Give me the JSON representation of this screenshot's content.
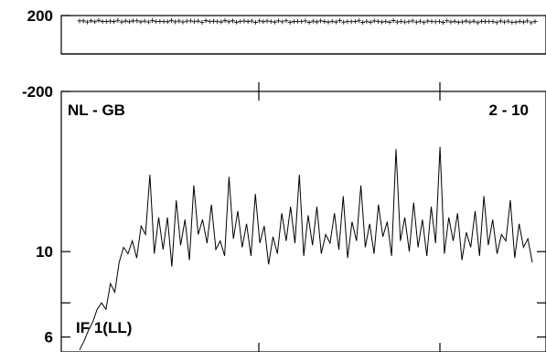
{
  "colors": {
    "line": "#000000",
    "frame": "#000000",
    "background": "#ffffff"
  },
  "chart_data": [
    {
      "type": "scatter",
      "panel": "phase",
      "y_ticks": [
        {
          "value": 200,
          "label": "200"
        },
        {
          "value": -200,
          "label": "-200"
        }
      ],
      "ylim": [
        -200,
        200
      ],
      "series": [
        {
          "marker": "plus",
          "y_mean": 170,
          "y_jitter": 3.5
        }
      ]
    },
    {
      "type": "line",
      "panel": "amplitude",
      "ylim": [
        5.3,
        17.5
      ],
      "y_ticks": [
        {
          "value": 10,
          "label": "10"
        },
        {
          "value": 6,
          "label": "6"
        }
      ],
      "x_ticks": [
        0.4,
        0.8
      ],
      "labels": {
        "top_left": "NL - GB",
        "top_right": "2 - 10",
        "bottom_left": "IF 1(LL)"
      },
      "x": [
        0.0,
        0.0097,
        0.0194,
        0.0291,
        0.0388,
        0.0485,
        0.0583,
        0.068,
        0.0777,
        0.0874,
        0.0971,
        0.1068,
        0.1165,
        0.1262,
        0.1359,
        0.1456,
        0.1553,
        0.165,
        0.1748,
        0.1845,
        0.1942,
        0.2039,
        0.2136,
        0.2233,
        0.233,
        0.2427,
        0.2524,
        0.2621,
        0.2718,
        0.2816,
        0.2913,
        0.301,
        0.3107,
        0.3204,
        0.3301,
        0.3398,
        0.3495,
        0.3592,
        0.3689,
        0.3786,
        0.3883,
        0.3981,
        0.4078,
        0.4175,
        0.4272,
        0.4369,
        0.4466,
        0.4563,
        0.466,
        0.4757,
        0.4854,
        0.4951,
        0.5049,
        0.5146,
        0.5243,
        0.534,
        0.5437,
        0.5534,
        0.5631,
        0.5728,
        0.5825,
        0.5922,
        0.6019,
        0.6117,
        0.6214,
        0.6311,
        0.6408,
        0.6505,
        0.6602,
        0.6699,
        0.6796,
        0.6893,
        0.699,
        0.7087,
        0.7184,
        0.7282,
        0.7379,
        0.7476,
        0.7573,
        0.767,
        0.7767,
        0.7864,
        0.7961,
        0.8058,
        0.8155,
        0.8252,
        0.835,
        0.8447,
        0.8544,
        0.8641,
        0.8738,
        0.8835,
        0.8932,
        0.9029,
        0.9126,
        0.9223,
        0.932,
        0.9417,
        0.9515,
        0.9612,
        0.9709,
        0.9806,
        0.9903,
        1.0
      ],
      "y": [
        5.4,
        5.8,
        6.3,
        6.7,
        7.3,
        7.6,
        7.3,
        8.5,
        8.1,
        9.5,
        10.2,
        9.9,
        10.5,
        9.7,
        11.2,
        10.8,
        13.6,
        9.9,
        11.6,
        10.1,
        11.6,
        9.3,
        12.4,
        10.3,
        11.5,
        9.6,
        13.1,
        10.8,
        11.5,
        10.4,
        12.2,
        10.1,
        10.5,
        9.8,
        13.5,
        10.6,
        11.9,
        10.2,
        11.3,
        9.8,
        12.7,
        10.4,
        11.2,
        9.4,
        10.7,
        9.9,
        11.8,
        10.5,
        12.1,
        10.4,
        13.6,
        9.8,
        11.7,
        10.3,
        12.1,
        9.9,
        10.8,
        10.4,
        11.8,
        10.1,
        12.6,
        9.7,
        11.4,
        10.5,
        13.1,
        10.2,
        11.3,
        9.9,
        12.2,
        10.7,
        11.4,
        9.8,
        14.8,
        10.5,
        11.6,
        10.0,
        12.3,
        10.2,
        11.5,
        9.8,
        12.1,
        10.4,
        14.9,
        9.9,
        11.6,
        10.5,
        11.8,
        9.6,
        10.9,
        10.2,
        11.9,
        9.8,
        12.6,
        10.3,
        11.5,
        9.9,
        10.8,
        10.5,
        12.4,
        9.7,
        11.3,
        10.2,
        10.6,
        9.5
      ]
    }
  ]
}
